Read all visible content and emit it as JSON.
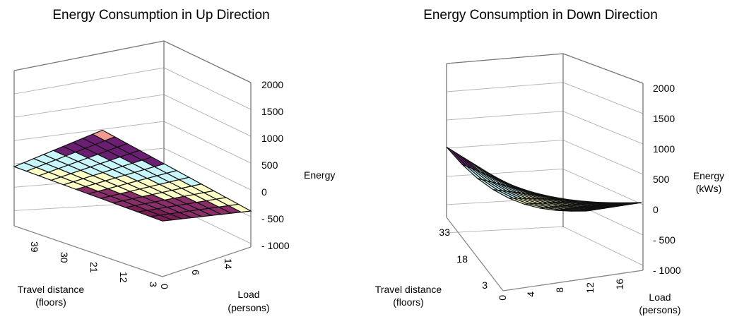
{
  "chart_data": [
    {
      "type": "surface3d",
      "title": "Energy Consumption in Up Direction",
      "zlabel": [
        "Energy"
      ],
      "xlabel": [
        "Travel distance",
        "(floors)"
      ],
      "ylabel": [
        "Load",
        "(persons)"
      ],
      "z_ticks": [
        "2000",
        "1500",
        "1000",
        "500",
        "0",
        "- 500",
        "- 1000"
      ],
      "x_ticks": [
        "39",
        "30",
        "21",
        "12",
        "3"
      ],
      "y_ticks": [
        "0",
        "6",
        "14"
      ],
      "zlim": [
        -1000,
        2000
      ],
      "bands": [
        {
          "from": -1000,
          "to": -500,
          "color": "#8f8fe8"
        },
        {
          "from": -500,
          "to": 0,
          "color": "#7a1e55"
        },
        {
          "from": 0,
          "to": 500,
          "color": "#8a2e6a"
        },
        {
          "from": 500,
          "to": 1000,
          "color": "#ffffc8"
        },
        {
          "from": 1000,
          "to": 1500,
          "color": "#c9f6fb"
        },
        {
          "from": 1500,
          "to": 2000,
          "color": "#6b1f73"
        },
        {
          "from": 2000,
          "to": 2500,
          "color": "#f39a8f"
        }
      ]
    },
    {
      "type": "surface3d",
      "title": "Energy Consumption in Down Direction",
      "zlabel": [
        "Energy",
        "(kWs)"
      ],
      "xlabel": [
        "Travel distance",
        "(floors)"
      ],
      "ylabel": [
        "Load",
        "(persons)"
      ],
      "z_ticks": [
        "2000",
        "1500",
        "1000",
        "500",
        "0",
        "- 500",
        "- 1000"
      ],
      "x_ticks": [
        "33",
        "18",
        "3"
      ],
      "y_ticks": [
        "0",
        "4",
        "8",
        "12",
        "16"
      ],
      "zlim": [
        -1000,
        2000
      ],
      "bands": [
        {
          "from": 0,
          "to": 500,
          "color": "#ffffc8"
        },
        {
          "from": 500,
          "to": 1000,
          "color": "#c9f6fb"
        },
        {
          "from": 1000,
          "to": 1500,
          "color": "#c9f6fb"
        },
        {
          "from": 1500,
          "to": 2000,
          "color": "#6b1f73"
        },
        {
          "from": 2000,
          "to": 2500,
          "color": "#f39a8f"
        }
      ]
    }
  ]
}
